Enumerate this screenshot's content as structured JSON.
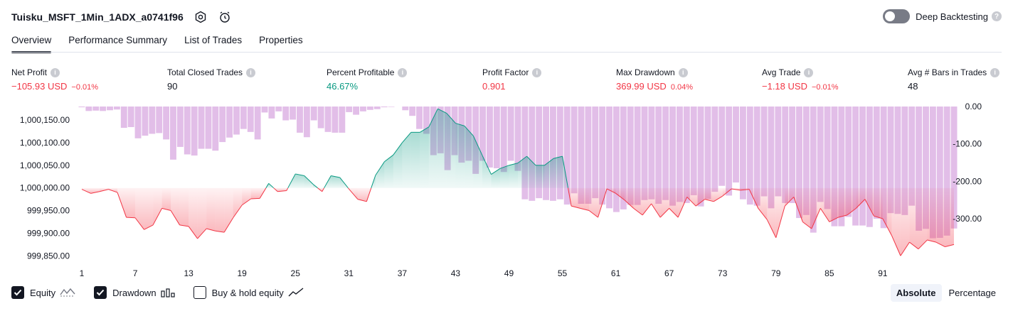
{
  "header": {
    "title": "Tuisku_MSFT_1Min_1ADX_a0741f96",
    "settings_icon": "gear-icon",
    "alert_icon": "alarm-clock-plus-icon",
    "deep_backtesting_label": "Deep Backtesting",
    "deep_backtesting_enabled": false,
    "help_icon": "question-icon"
  },
  "tabs": [
    {
      "label": "Overview",
      "active": true
    },
    {
      "label": "Performance Summary",
      "active": false
    },
    {
      "label": "List of Trades",
      "active": false
    },
    {
      "label": "Properties",
      "active": false
    }
  ],
  "metrics": [
    {
      "label": "Net Profit",
      "value": "−105.93 USD",
      "pct": "−0.01%",
      "color": "#f23645"
    },
    {
      "label": "Total Closed Trades",
      "value": "90",
      "pct": "",
      "color": "#131722"
    },
    {
      "label": "Percent Profitable",
      "value": "46.67%",
      "pct": "",
      "color": "#089981"
    },
    {
      "label": "Profit Factor",
      "value": "0.901",
      "pct": "",
      "color": "#f23645"
    },
    {
      "label": "Max Drawdown",
      "value": "369.99 USD",
      "pct": "0.04%",
      "color": "#f23645"
    },
    {
      "label": "Avg Trade",
      "value": "−1.18 USD",
      "pct": "−0.01%",
      "color": "#f23645"
    },
    {
      "label": "Avg # Bars in Trades",
      "value": "48",
      "pct": "",
      "color": "#131722"
    }
  ],
  "chart_data": {
    "type": "line",
    "x_ticks": [
      "1",
      "7",
      "13",
      "19",
      "25",
      "31",
      "37",
      "43",
      "49",
      "55",
      "61",
      "67",
      "73",
      "79",
      "85",
      "91"
    ],
    "left_axis": {
      "ticks": [
        "1,000,150.00",
        "1,000,100.00",
        "1,000,050.00",
        "1,000,000.00",
        "999,950.00",
        "999,900.00",
        "999,850.00"
      ],
      "range": [
        999830,
        1000180
      ]
    },
    "right_axis": {
      "ticks": [
        "0.00",
        "-100.00",
        "-200.00",
        "-300.00"
      ],
      "range": [
        -370,
        0
      ]
    },
    "baseline": 1000000,
    "series": [
      {
        "name": "Equity",
        "axis": "left",
        "color_up": "#089981",
        "color_down": "#f23645",
        "values": [
          999997,
          999988,
          999992,
          999997,
          999990,
          999935,
          999934,
          999908,
          999918,
          999955,
          999950,
          999918,
          999915,
          999888,
          999910,
          999905,
          999902,
          999934,
          999962,
          999976,
          999977,
          1000010,
          999992,
          999994,
          1000031,
          1000027,
          1000008,
          999992,
          1000027,
          1000023,
          999998,
          999975,
          999970,
          1000028,
          1000058,
          1000073,
          1000100,
          1000123,
          1000123,
          1000135,
          1000175,
          1000165,
          1000143,
          1000137,
          1000115,
          1000072,
          1000030,
          1000043,
          1000050,
          1000055,
          1000070,
          1000050,
          1000050,
          1000065,
          1000070,
          999960,
          999955,
          999950,
          999935,
          999998,
          999988,
          999973,
          999955,
          999940,
          999965,
          999935,
          999955,
          999935,
          999980,
          999960,
          999975,
          999970,
          999982,
          999998,
          999995,
          999997,
          999955,
          999930,
          999890,
          999960,
          999980,
          999925,
          999910,
          999955,
          999925,
          999935,
          999940,
          999955,
          999975,
          999938,
          999932,
          999895,
          999850,
          999880,
          999865,
          999885,
          999880,
          999870,
          999875
        ]
      },
      {
        "name": "Drawdown",
        "axis": "right",
        "color": "#ce93d8",
        "values": [
          -2,
          -12,
          -11,
          -12,
          -10,
          -8,
          -57,
          -55,
          -85,
          -78,
          -73,
          -71,
          -88,
          -142,
          -108,
          -128,
          -131,
          -113,
          -113,
          -118,
          -95,
          -83,
          -75,
          -60,
          -68,
          -88,
          -16,
          -32,
          -13,
          -37,
          -35,
          -70,
          -82,
          -37,
          -58,
          -68,
          -70,
          -70,
          -15,
          -22,
          -13,
          -9,
          -7,
          -2,
          -1,
          0,
          -10,
          -25,
          -60,
          -73,
          -130,
          -125,
          -170,
          -130,
          -150,
          -145,
          -180,
          -145,
          -163,
          -165,
          -175,
          -145,
          -172,
          -248,
          -252,
          -245,
          -250,
          -252,
          -248,
          -262,
          -232,
          -260,
          -260,
          -245,
          -262,
          -272,
          -282,
          -275,
          -263,
          -263,
          -250,
          -248,
          -260,
          -250,
          -265,
          -255,
          -258,
          -237,
          -267,
          -247,
          -228,
          -212,
          -238,
          -203,
          -248,
          -262,
          -265,
          -240,
          -272,
          -240,
          -258,
          -258,
          -298,
          -290,
          -337,
          -255,
          -274,
          -320,
          -320,
          -295,
          -318,
          -318,
          -322,
          -300,
          -325,
          -285,
          -287,
          -290,
          -265,
          -332,
          -327,
          -352,
          -351,
          -345,
          -326
        ]
      }
    ]
  },
  "legend": [
    {
      "label": "Equity",
      "checked": true,
      "icon": "equity-line-icon"
    },
    {
      "label": "Drawdown",
      "checked": true,
      "icon": "drawdown-bars-icon"
    },
    {
      "label": "Buy & hold equity",
      "checked": false,
      "icon": "buy-hold-line-icon"
    }
  ],
  "view_modes": [
    {
      "label": "Absolute",
      "active": true
    },
    {
      "label": "Percentage",
      "active": false
    }
  ]
}
